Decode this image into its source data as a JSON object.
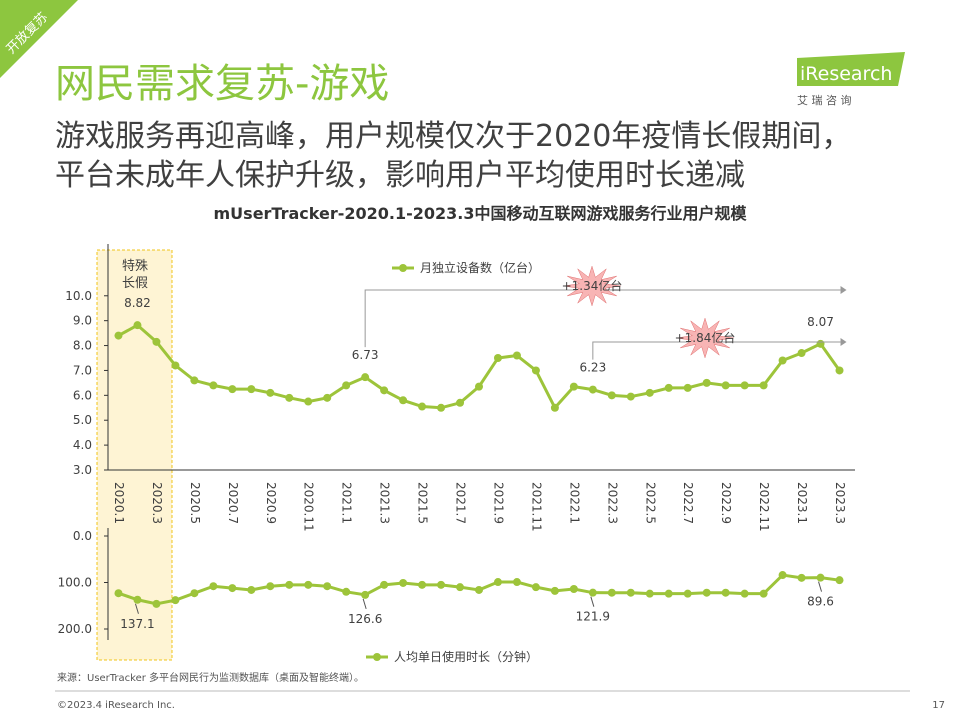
{
  "header": {
    "tag": "开放复苏",
    "title": "网民需求复苏-游戏",
    "subtitle": [
      "游戏服务再迎高峰，用户规模仅次于2020年疫情长假期间，",
      "平台未成年人保护升级，影响用户平均使用时长递减"
    ],
    "logo": "iResearch",
    "logo_cn": "艾 瑞 咨 询"
  },
  "chart_title": "mUserTracker-2020.1-2023.3中国移动互联网游戏服务行业用户规模",
  "highlight_label": [
    "特殊",
    "长假"
  ],
  "chart_data": [
    {
      "type": "line",
      "categories": [
        "2020.1",
        null,
        "2020.3",
        null,
        "2020.5",
        null,
        "2020.7",
        null,
        "2020.9",
        null,
        "2020.11",
        null,
        "2021.1",
        null,
        "2021.3",
        null,
        "2021.5",
        null,
        "2021.7",
        null,
        "2021.9",
        null,
        "2021.11",
        null,
        "2022.1",
        null,
        "2022.3",
        null,
        "2022.5",
        null,
        "2022.7",
        null,
        "2022.9",
        null,
        "2022.11",
        null,
        "2023.1",
        null,
        "2023.3"
      ],
      "series": [
        {
          "name": "月独立设备数（亿台）",
          "color": "#9dc43a",
          "values": [
            8.4,
            8.82,
            8.15,
            7.2,
            6.6,
            6.4,
            6.25,
            6.25,
            6.1,
            5.9,
            5.75,
            5.9,
            6.4,
            6.73,
            6.2,
            5.8,
            5.55,
            5.5,
            5.7,
            6.35,
            7.5,
            7.6,
            7.0,
            5.5,
            6.35,
            6.23,
            6.0,
            5.95,
            6.1,
            6.3,
            6.3,
            6.5,
            6.4,
            6.4,
            6.4,
            7.4,
            7.7,
            8.07,
            7.0
          ],
          "value_labels": [
            null,
            "8.82",
            null,
            null,
            null,
            null,
            null,
            null,
            null,
            null,
            null,
            null,
            null,
            "6.73",
            null,
            null,
            null,
            null,
            null,
            null,
            null,
            null,
            null,
            null,
            null,
            "6.23",
            null,
            null,
            null,
            null,
            null,
            null,
            null,
            null,
            null,
            null,
            null,
            "8.07",
            null
          ]
        }
      ],
      "ylim": [
        3,
        12
      ],
      "yticks": [
        {
          "value": 3,
          "label": "3.0"
        },
        {
          "value": 4,
          "label": "4.0"
        },
        {
          "value": 5,
          "label": "5.0"
        },
        {
          "value": 6,
          "label": "6.0"
        },
        {
          "value": 7,
          "label": "7.0"
        },
        {
          "value": 8,
          "label": "8.0"
        },
        {
          "value": 9,
          "label": "9.0"
        },
        {
          "value": 10,
          "label": "10.0"
        }
      ],
      "annotations": [
        "+1.34亿台",
        "+1.84亿台"
      ]
    },
    {
      "type": "line",
      "inverted": true,
      "series": [
        {
          "name": "人均单日使用时长（分钟）",
          "color": "#9dc43a",
          "values": [
            123,
            137.1,
            146,
            138,
            123,
            108,
            112,
            116,
            108,
            105,
            105,
            108,
            120,
            126.6,
            105,
            101,
            105,
            105,
            110,
            116,
            99,
            99,
            110,
            118,
            114,
            121.9,
            122,
            122,
            124,
            124,
            124,
            122,
            122,
            124,
            124,
            84,
            90,
            89.6,
            95
          ],
          "value_labels": [
            null,
            "137.1",
            null,
            null,
            null,
            null,
            null,
            null,
            null,
            null,
            null,
            null,
            null,
            "126.6",
            null,
            null,
            null,
            null,
            null,
            null,
            null,
            null,
            null,
            null,
            null,
            "121.9",
            null,
            null,
            null,
            null,
            null,
            null,
            null,
            null,
            null,
            null,
            null,
            "89.6",
            null
          ]
        }
      ],
      "ylim": [
        0,
        200
      ],
      "yticks": [
        {
          "value": 0,
          "label": "0.0"
        },
        {
          "value": 100,
          "label": "100.0"
        },
        {
          "value": 200,
          "label": "200.0"
        }
      ]
    }
  ],
  "source": "来源：UserTracker 多平台网民行为监测数据库（桌面及智能终端）。",
  "footer": {
    "copyright": "©2023.4 iResearch Inc.",
    "page": "17"
  }
}
